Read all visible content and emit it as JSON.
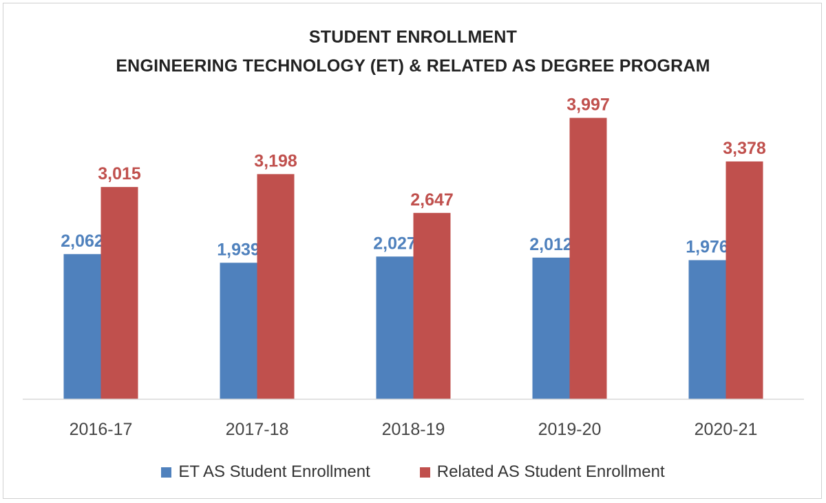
{
  "chart_data": {
    "type": "bar",
    "title": "STUDENT ENROLLMENT",
    "subtitle": "ENGINEERING TECHNOLOGY (ET) & RELATED AS DEGREE PROGRAM",
    "categories": [
      "2016-17",
      "2017-18",
      "2018-19",
      "2019-20",
      "2020-21"
    ],
    "series": [
      {
        "name": "ET AS Student Enrollment",
        "color": "#4f81bd",
        "values": [
          2062,
          1939,
          2027,
          2012,
          1976
        ],
        "labels": [
          "2,062",
          "1,939",
          "2,027",
          "2,012",
          "1,976"
        ]
      },
      {
        "name": "Related AS Student Enrollment",
        "color": "#c0504d",
        "values": [
          3015,
          3198,
          2647,
          3997,
          3378
        ],
        "labels": [
          "3,015",
          "3,198",
          "2,647",
          "3,997",
          "3,378"
        ]
      }
    ],
    "ylim": [
      0,
      4500
    ],
    "grid": false,
    "legend": "bottom",
    "xlabel": "",
    "ylabel": ""
  }
}
